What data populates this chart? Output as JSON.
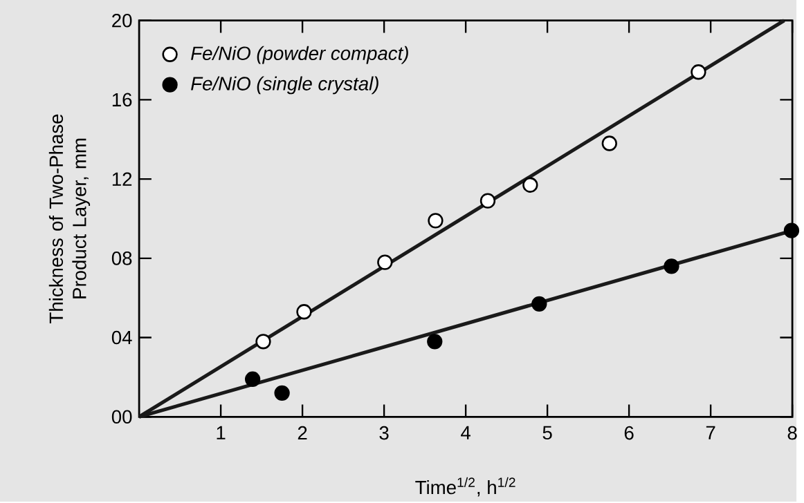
{
  "chart_data": {
    "type": "scatter",
    "xlabel": "Time$^{1/2}$, h$^{1/2}$",
    "ylabel": "Thickness of Two-Phase Product Layer, mm",
    "xlim": [
      0,
      8
    ],
    "ylim": [
      0,
      20
    ],
    "xticks": [
      1,
      2,
      3,
      4,
      5,
      6,
      7,
      8
    ],
    "yticks": [
      {
        "value": 0,
        "label": "00"
      },
      {
        "value": 4,
        "label": "04"
      },
      {
        "value": 8,
        "label": "08"
      },
      12,
      16,
      20
    ],
    "legend": "top left",
    "grid": false,
    "series": [
      {
        "name": "Fe/NiO (powder compact)",
        "type": "scatter",
        "marker": "circle",
        "color": "#ffffff",
        "x": [
          1.52,
          2.02,
          3.01,
          3.63,
          4.27,
          4.79,
          5.76,
          6.85
        ],
        "values": [
          3.8,
          5.3,
          7.8,
          9.9,
          10.9,
          11.7,
          13.8,
          17.4
        ]
      },
      {
        "name": "Fe/NiO (single crystal)",
        "type": "scatter",
        "marker": "circle",
        "color": "#000000",
        "x": [
          1.39,
          1.75,
          3.62,
          4.9,
          6.52,
          7.99
        ],
        "values": [
          1.9,
          1.2,
          3.8,
          5.7,
          7.6,
          9.4
        ]
      },
      {
        "type": "line",
        "marker": "none",
        "color": "#1a1a1a",
        "x": [
          0,
          7.9
        ],
        "values": [
          0,
          20
        ]
      },
      {
        "type": "line",
        "color": "#1a1a1a",
        "x": [
          0,
          8
        ],
        "values": [
          0,
          9.4
        ]
      }
    ]
  }
}
